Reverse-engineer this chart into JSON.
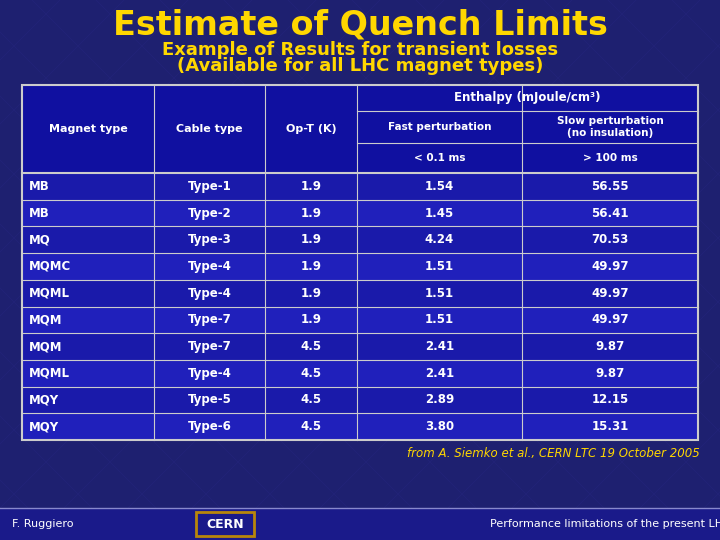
{
  "title": "Estimate of Quench Limits",
  "subtitle1": "Example of Results for transient losses",
  "subtitle2": "(Available for all LHC magnet types)",
  "bg_color": "#1e2070",
  "title_color": "#ffd700",
  "subtitle_color": "#ffd700",
  "table_bg_dark": "#1a1a8a",
  "table_bg_light": "#2828aa",
  "table_border": "#cccccc",
  "table_text": "#ffffff",
  "rows": [
    [
      "MB",
      "Type-1",
      "1.9",
      "1.54",
      "56.55"
    ],
    [
      "MB",
      "Type-2",
      "1.9",
      "1.45",
      "56.41"
    ],
    [
      "MQ",
      "Type-3",
      "1.9",
      "4.24",
      "70.53"
    ],
    [
      "MQMC",
      "Type-4",
      "1.9",
      "1.51",
      "49.97"
    ],
    [
      "MQML",
      "Type-4",
      "1.9",
      "1.51",
      "49.97"
    ],
    [
      "MQM",
      "Type-7",
      "1.9",
      "1.51",
      "49.97"
    ],
    [
      "MQM",
      "Type-7",
      "4.5",
      "2.41",
      "9.87"
    ],
    [
      "MQML",
      "Type-4",
      "4.5",
      "2.41",
      "9.87"
    ],
    [
      "MQY",
      "Type-5",
      "4.5",
      "2.89",
      "12.15"
    ],
    [
      "MQY",
      "Type-6",
      "4.5",
      "3.80",
      "15.31"
    ]
  ],
  "footnote": "from A. Siemko et al., CERN LTC 19 October 2005",
  "footnote_color": "#ffd700",
  "footer_left": "F. Ruggiero",
  "footer_center": "CERN",
  "footer_right": "Performance limitations of the present LHC",
  "footer_color": "#ffffff",
  "cern_box_color": "#b8860b",
  "footer_bg": "#1a1a8a",
  "footer_line_color": "#8888cc"
}
